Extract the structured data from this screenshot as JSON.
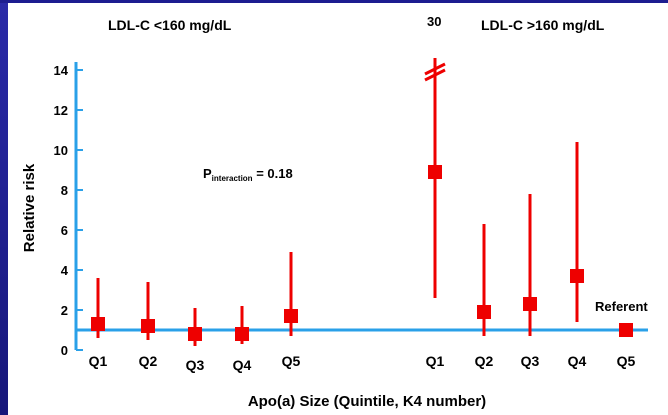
{
  "chart_data": {
    "type": "scatter",
    "subtype": "point-range (relative risk with 95% CI)",
    "title_fragment": "",
    "panels": [
      {
        "title": "LDL-C <160 mg/dL",
        "categories": [
          "Q1",
          "Q2",
          "Q3",
          "Q4",
          "Q5"
        ],
        "values": [
          1.3,
          1.2,
          0.8,
          0.8,
          1.7
        ],
        "ci_low": [
          0.6,
          0.5,
          0.2,
          0.3,
          0.7
        ],
        "ci_high": [
          3.6,
          3.4,
          2.1,
          2.2,
          4.9
        ]
      },
      {
        "title": "LDL-C >160 mg/dL",
        "categories": [
          "Q1",
          "Q2",
          "Q3",
          "Q4",
          "Q5"
        ],
        "values": [
          8.9,
          1.9,
          2.3,
          3.7,
          1.0
        ],
        "ci_low": [
          2.6,
          0.7,
          0.7,
          1.4,
          1.0
        ],
        "ci_high": [
          30,
          6.3,
          7.8,
          10.4,
          1.0
        ],
        "ci_high_label": "30",
        "referent_label": "Referent"
      }
    ],
    "xlabel": "Apo(a) Size (Quintile, K4 number)",
    "ylabel": "Relative risk",
    "yticks": [
      0,
      2,
      4,
      6,
      8,
      10,
      12,
      14
    ],
    "ylim": [
      0,
      14
    ],
    "reference_line": 1,
    "annotation": {
      "prefix": "P",
      "subscript": "interaction",
      "suffix": " = 0.18"
    },
    "marker_color": "#ee0000",
    "axis_color": "#2aa0e8",
    "grid": false
  }
}
